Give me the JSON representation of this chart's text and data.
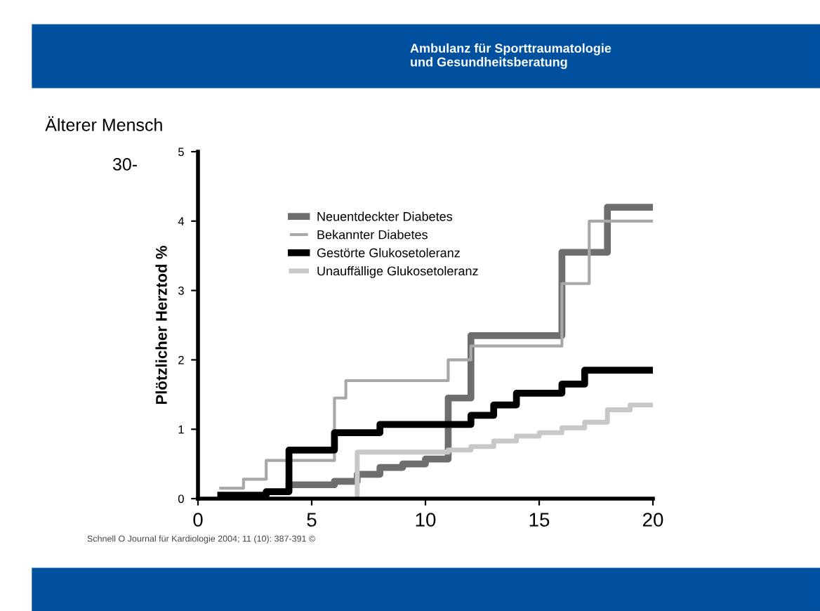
{
  "chart_data": {
    "type": "step",
    "title": "Älterer Mensch",
    "subtitle": "Ambulanz für Sporttraumatologie\nund Gesundheitsberatung",
    "ylabel": "Plötzlicher Herztod %",
    "annotations": [
      "30-",
      "Schnell O Journal für Kardiologie 2004; 11 (10): 387-391 ©"
    ],
    "series": [
      {
        "name": "Neuentdeckter Diabetes",
        "color": "#6e6e6e",
        "x": [
          4,
          6,
          7,
          8,
          9,
          10,
          11,
          12,
          16,
          18,
          20
        ],
        "values": [
          0.2,
          0.25,
          0.35,
          0.45,
          0.5,
          0.57,
          1.45,
          2.35,
          3.55,
          4.2,
          4.2
        ]
      },
      {
        "name": "Bekannter Diabetes",
        "color": "#a8a8a8",
        "x": [
          1,
          2,
          3,
          6,
          6.5,
          11,
          12,
          16,
          17.2,
          20
        ],
        "values": [
          0.15,
          0.28,
          0.55,
          1.45,
          1.7,
          2.0,
          2.2,
          3.1,
          4.0,
          4.0
        ]
      },
      {
        "name": "Gestörte Glukosetoleranz",
        "color": "#000000",
        "x": [
          1,
          3,
          4,
          6,
          8,
          12,
          13,
          14,
          16,
          17,
          20
        ],
        "values": [
          0.05,
          0.1,
          0.7,
          0.95,
          1.07,
          1.2,
          1.35,
          1.52,
          1.65,
          1.85,
          1.85
        ]
      },
      {
        "name": "Unauffällige Glukosetoleranz",
        "color": "#c8c8c8",
        "x": [
          7,
          7,
          11,
          12,
          13,
          14,
          15,
          16,
          17,
          18,
          19,
          20
        ],
        "values": [
          0,
          0.67,
          0.7,
          0.75,
          0.83,
          0.9,
          0.95,
          1.02,
          1.1,
          1.28,
          1.35,
          1.35
        ]
      }
    ],
    "xlim": [
      0,
      20
    ],
    "xticks": [
      0,
      5,
      10,
      15,
      20
    ],
    "ylim": [
      0,
      5
    ],
    "yticks": [
      0,
      1,
      2,
      3,
      4,
      5
    ],
    "grid": false,
    "legend": "top left"
  }
}
